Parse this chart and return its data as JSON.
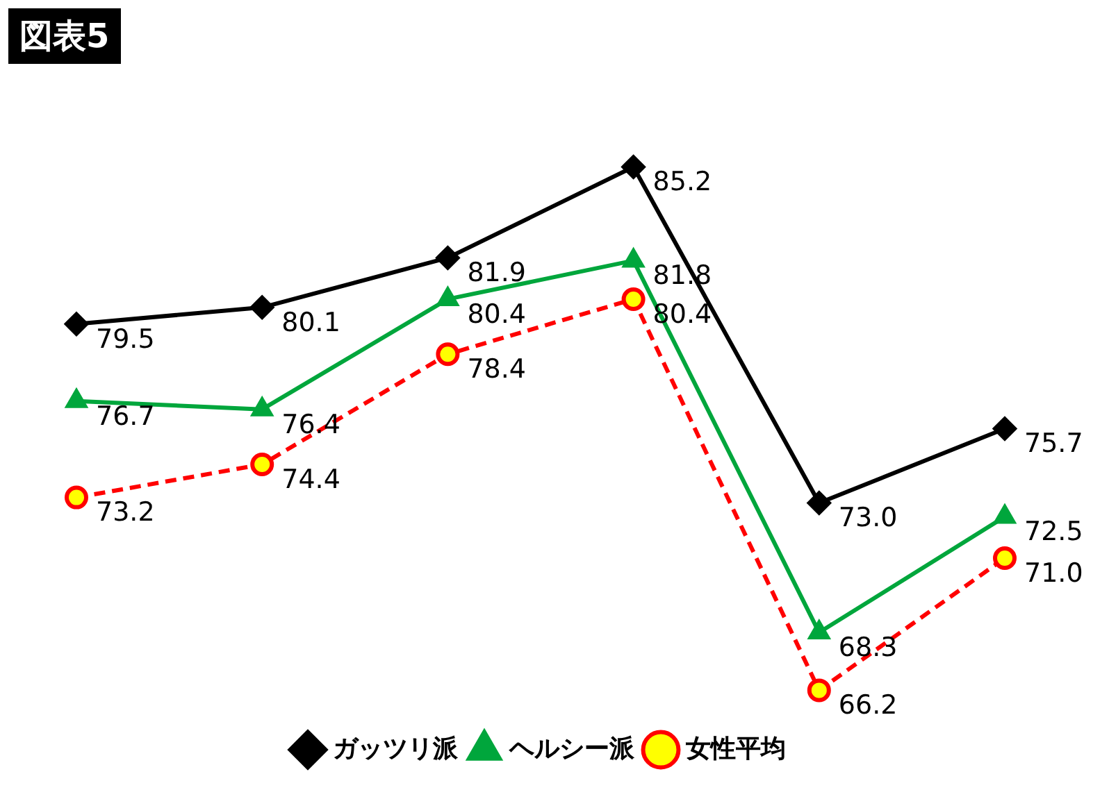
{
  "chart_data": {
    "type": "line",
    "title": "図表5",
    "categories": [
      null,
      null,
      null,
      null,
      null,
      null
    ],
    "series": [
      {
        "name": "ガッツリ派",
        "color": "#000000",
        "values": [
          79.5,
          80.1,
          81.9,
          85.2,
          73.0,
          75.7
        ],
        "value_labels": [
          "79.5",
          "80.1",
          "81.9",
          "85.2",
          "73.0",
          "75.7"
        ],
        "marker": "diamond",
        "line_style": "solid"
      },
      {
        "name": "ヘルシー派",
        "color": "#00a63c",
        "values": [
          76.7,
          76.4,
          80.4,
          81.8,
          68.3,
          72.5
        ],
        "value_labels": [
          "76.7",
          "76.4",
          "80.4",
          "81.8",
          "68.3",
          "72.5"
        ],
        "marker": "triangle",
        "line_style": "solid"
      },
      {
        "name": "女性平均",
        "color": "#ff0000",
        "values": [
          73.2,
          74.4,
          78.4,
          80.4,
          66.2,
          71.0
        ],
        "value_labels": [
          "73.2",
          "74.4",
          "78.4",
          "80.4",
          "66.2",
          "71.0"
        ],
        "marker": "circle",
        "line_style": "dashed"
      }
    ],
    "legend": "bottom",
    "tick_labels": false
  }
}
